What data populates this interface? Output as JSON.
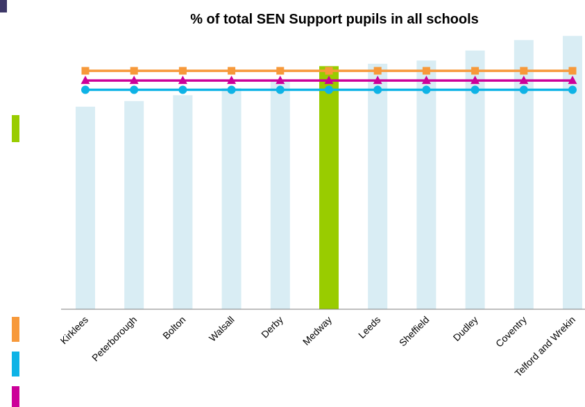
{
  "chart_data": {
    "type": "bar",
    "title": "% of total SEN Support pupils in all schools",
    "xlabel": "",
    "ylabel": "",
    "categories": [
      "Kirklees",
      "Peterborough",
      "Bolton",
      "Walsall",
      "Derby",
      "Medway",
      "Leeds",
      "Sheffield",
      "Dudley",
      "Coventry",
      "Telford and Wrekin"
    ],
    "series": [
      {
        "kind": "bar",
        "values": [
          83.0,
          85.3,
          87.7,
          90.6,
          93.7,
          99.6,
          100.6,
          101.9,
          106.0,
          110.3,
          112.0
        ],
        "color": "#d9edf4",
        "highlight_index": 5,
        "highlight_color": "#99cc00"
      },
      {
        "kind": "line",
        "marker": "square",
        "value": 97.7,
        "color": "#f7993a"
      },
      {
        "kind": "line",
        "marker": "triangle",
        "value": 93.7,
        "color": "#cc0099"
      },
      {
        "kind": "line",
        "marker": "circle",
        "value": 89.9,
        "color": "#0eb3e6"
      }
    ],
    "ylim": [
      0,
      125
    ],
    "grid": false,
    "legend": "left, unlabeled color swatches"
  },
  "legend_swatches": [
    {
      "color": "#99cc00"
    },
    {
      "color": "#f7993a"
    },
    {
      "color": "#0eb3e6"
    },
    {
      "color": "#cc0099"
    }
  ]
}
